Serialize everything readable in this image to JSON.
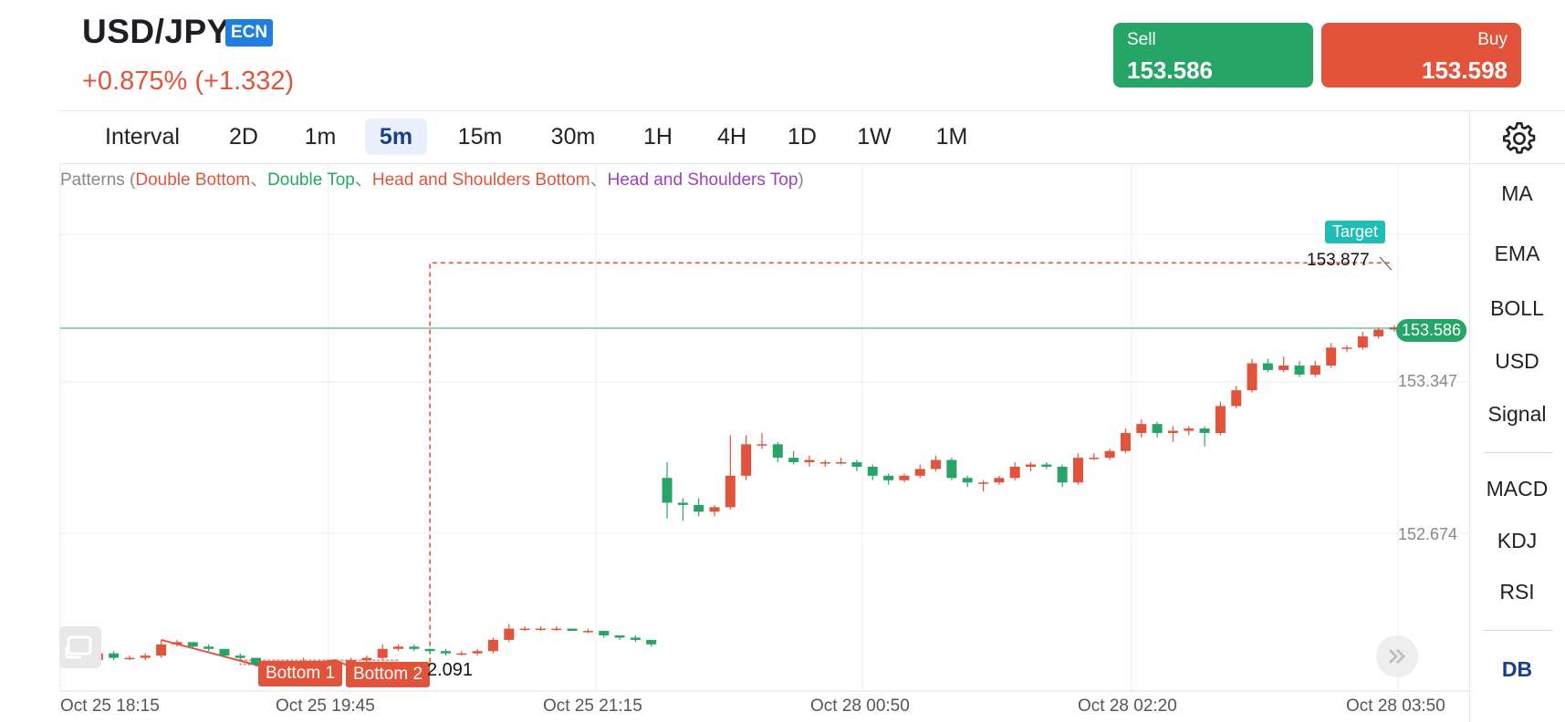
{
  "header": {
    "symbol": "USD/JPY",
    "badge": "ECN",
    "change": "+0.875% (+1.332)"
  },
  "trade": {
    "sell_label": "Sell",
    "sell_price": "153.586",
    "buy_label": "Buy",
    "buy_price": "153.598"
  },
  "intervals": {
    "label": "Interval",
    "items": [
      "2D",
      "1m",
      "5m",
      "15m",
      "30m",
      "1H",
      "4H",
      "1D",
      "1W",
      "1M"
    ],
    "active": "5m"
  },
  "settings_icon": "gear-icon",
  "right_panel": {
    "overlays": [
      "MA",
      "EMA",
      "BOLL",
      "USD",
      "Signal"
    ],
    "oscillators": [
      "MACD",
      "KDJ",
      "RSI"
    ],
    "brand": "DB"
  },
  "patterns": {
    "prefix": "Patterns (",
    "double_bottom": "Double Bottom",
    "sep1": "、",
    "double_top": "Double Top",
    "sep2": "、",
    "hs_bottom": "Head and Shoulders Bottom",
    "sep3": "、",
    "hs_top": "Head and Shoulders Top",
    "suffix": ")"
  },
  "colors": {
    "up": "#e1533b",
    "down": "#27a567",
    "accent": "#1a3f8f",
    "target": "#1fbdb5"
  },
  "chart_data": {
    "type": "candlestick",
    "x_labels": [
      "Oct 25 18:15",
      "Oct 25 19:45",
      "Oct 25 21:15",
      "Oct 28 00:50",
      "Oct 28 02:20",
      "Oct 28 03:50"
    ],
    "y_ticks": [
      "153.347",
      "152.674"
    ],
    "current_price": "153.586",
    "target_label": "Target",
    "target_price": "153.877",
    "pattern_labels": [
      "Bottom 1",
      "Bottom 2"
    ],
    "pattern_low": "2.091",
    "candles": [
      {
        "o": 152.1,
        "h": 152.14,
        "l": 152.08,
        "c": 152.11
      },
      {
        "o": 152.11,
        "h": 152.16,
        "l": 152.09,
        "c": 152.14
      },
      {
        "o": 152.14,
        "h": 152.15,
        "l": 152.11,
        "c": 152.12
      },
      {
        "o": 152.12,
        "h": 152.13,
        "l": 152.11,
        "c": 152.12
      },
      {
        "o": 152.12,
        "h": 152.14,
        "l": 152.11,
        "c": 152.13
      },
      {
        "o": 152.13,
        "h": 152.2,
        "l": 152.12,
        "c": 152.18
      },
      {
        "o": 152.18,
        "h": 152.2,
        "l": 152.17,
        "c": 152.19
      },
      {
        "o": 152.19,
        "h": 152.19,
        "l": 152.16,
        "c": 152.17
      },
      {
        "o": 152.17,
        "h": 152.18,
        "l": 152.15,
        "c": 152.16
      },
      {
        "o": 152.16,
        "h": 152.16,
        "l": 152.12,
        "c": 152.13
      },
      {
        "o": 152.13,
        "h": 152.14,
        "l": 152.11,
        "c": 152.12
      },
      {
        "o": 152.12,
        "h": 152.12,
        "l": 152.08,
        "c": 152.09
      },
      {
        "o": 152.09,
        "h": 152.1,
        "l": 152.07,
        "c": 152.08
      },
      {
        "o": 152.08,
        "h": 152.11,
        "l": 152.07,
        "c": 152.1
      },
      {
        "o": 152.1,
        "h": 152.12,
        "l": 152.09,
        "c": 152.1
      },
      {
        "o": 152.1,
        "h": 152.11,
        "l": 152.08,
        "c": 152.09
      },
      {
        "o": 152.09,
        "h": 152.1,
        "l": 152.07,
        "c": 152.08
      },
      {
        "o": 152.08,
        "h": 152.12,
        "l": 152.07,
        "c": 152.11
      },
      {
        "o": 152.11,
        "h": 152.13,
        "l": 152.1,
        "c": 152.12
      },
      {
        "o": 152.12,
        "h": 152.18,
        "l": 152.11,
        "c": 152.16
      },
      {
        "o": 152.16,
        "h": 152.18,
        "l": 152.15,
        "c": 152.17
      },
      {
        "o": 152.17,
        "h": 152.18,
        "l": 152.15,
        "c": 152.16
      },
      {
        "o": 152.16,
        "h": 152.16,
        "l": 152.14,
        "c": 152.15
      },
      {
        "o": 152.15,
        "h": 152.16,
        "l": 152.13,
        "c": 152.14
      },
      {
        "o": 152.14,
        "h": 152.15,
        "l": 152.13,
        "c": 152.14
      },
      {
        "o": 152.14,
        "h": 152.16,
        "l": 152.13,
        "c": 152.15
      },
      {
        "o": 152.15,
        "h": 152.21,
        "l": 152.14,
        "c": 152.2
      },
      {
        "o": 152.2,
        "h": 152.27,
        "l": 152.19,
        "c": 152.25
      },
      {
        "o": 152.25,
        "h": 152.26,
        "l": 152.24,
        "c": 152.25
      },
      {
        "o": 152.25,
        "h": 152.26,
        "l": 152.24,
        "c": 152.25
      },
      {
        "o": 152.25,
        "h": 152.26,
        "l": 152.24,
        "c": 152.25
      },
      {
        "o": 152.25,
        "h": 152.25,
        "l": 152.24,
        "c": 152.24
      },
      {
        "o": 152.24,
        "h": 152.25,
        "l": 152.23,
        "c": 152.24
      },
      {
        "o": 152.24,
        "h": 152.24,
        "l": 152.21,
        "c": 152.22
      },
      {
        "o": 152.22,
        "h": 152.22,
        "l": 152.2,
        "c": 152.21
      },
      {
        "o": 152.21,
        "h": 152.22,
        "l": 152.19,
        "c": 152.2
      },
      {
        "o": 152.2,
        "h": 152.2,
        "l": 152.17,
        "c": 152.18
      },
      {
        "o": 152.92,
        "h": 152.99,
        "l": 152.74,
        "c": 152.81
      },
      {
        "o": 152.81,
        "h": 152.83,
        "l": 152.73,
        "c": 152.8
      },
      {
        "o": 152.8,
        "h": 152.83,
        "l": 152.75,
        "c": 152.77
      },
      {
        "o": 152.77,
        "h": 152.8,
        "l": 152.75,
        "c": 152.79
      },
      {
        "o": 152.79,
        "h": 153.11,
        "l": 152.78,
        "c": 152.93
      },
      {
        "o": 152.93,
        "h": 153.11,
        "l": 152.91,
        "c": 153.07
      },
      {
        "o": 153.07,
        "h": 153.12,
        "l": 153.05,
        "c": 153.07
      },
      {
        "o": 153.07,
        "h": 153.08,
        "l": 152.99,
        "c": 153.01
      },
      {
        "o": 153.01,
        "h": 153.04,
        "l": 152.98,
        "c": 152.99
      },
      {
        "o": 152.99,
        "h": 153.02,
        "l": 152.97,
        "c": 153.0
      },
      {
        "o": 152.99,
        "h": 153.0,
        "l": 152.97,
        "c": 152.99
      },
      {
        "o": 152.99,
        "h": 153.01,
        "l": 152.98,
        "c": 152.99
      },
      {
        "o": 152.99,
        "h": 153.0,
        "l": 152.95,
        "c": 152.97
      },
      {
        "o": 152.97,
        "h": 152.98,
        "l": 152.91,
        "c": 152.93
      },
      {
        "o": 152.93,
        "h": 152.94,
        "l": 152.89,
        "c": 152.91
      },
      {
        "o": 152.91,
        "h": 152.94,
        "l": 152.9,
        "c": 152.93
      },
      {
        "o": 152.93,
        "h": 152.98,
        "l": 152.92,
        "c": 152.96
      },
      {
        "o": 152.96,
        "h": 153.02,
        "l": 152.95,
        "c": 153.0
      },
      {
        "o": 153.0,
        "h": 153.01,
        "l": 152.91,
        "c": 152.92
      },
      {
        "o": 152.92,
        "h": 152.93,
        "l": 152.88,
        "c": 152.9
      },
      {
        "o": 152.9,
        "h": 152.91,
        "l": 152.86,
        "c": 152.9
      },
      {
        "o": 152.9,
        "h": 152.93,
        "l": 152.89,
        "c": 152.92
      },
      {
        "o": 152.92,
        "h": 152.99,
        "l": 152.91,
        "c": 152.97
      },
      {
        "o": 152.97,
        "h": 152.99,
        "l": 152.95,
        "c": 152.98
      },
      {
        "o": 152.98,
        "h": 152.99,
        "l": 152.96,
        "c": 152.97
      },
      {
        "o": 152.97,
        "h": 152.98,
        "l": 152.88,
        "c": 152.9
      },
      {
        "o": 152.9,
        "h": 153.03,
        "l": 152.89,
        "c": 153.01
      },
      {
        "o": 153.01,
        "h": 153.03,
        "l": 153.0,
        "c": 153.01
      },
      {
        "o": 153.01,
        "h": 153.05,
        "l": 153.0,
        "c": 153.04
      },
      {
        "o": 153.04,
        "h": 153.14,
        "l": 153.03,
        "c": 153.12
      },
      {
        "o": 153.12,
        "h": 153.18,
        "l": 153.1,
        "c": 153.16
      },
      {
        "o": 153.16,
        "h": 153.17,
        "l": 153.1,
        "c": 153.12
      },
      {
        "o": 153.12,
        "h": 153.15,
        "l": 153.08,
        "c": 153.13
      },
      {
        "o": 153.13,
        "h": 153.15,
        "l": 153.11,
        "c": 153.14
      },
      {
        "o": 153.14,
        "h": 153.15,
        "l": 153.06,
        "c": 153.12
      },
      {
        "o": 153.12,
        "h": 153.26,
        "l": 153.11,
        "c": 153.24
      },
      {
        "o": 153.24,
        "h": 153.33,
        "l": 153.23,
        "c": 153.31
      },
      {
        "o": 153.31,
        "h": 153.45,
        "l": 153.3,
        "c": 153.43
      },
      {
        "o": 153.43,
        "h": 153.45,
        "l": 153.39,
        "c": 153.4
      },
      {
        "o": 153.4,
        "h": 153.46,
        "l": 153.39,
        "c": 153.42
      },
      {
        "o": 153.42,
        "h": 153.44,
        "l": 153.37,
        "c": 153.38
      },
      {
        "o": 153.38,
        "h": 153.44,
        "l": 153.37,
        "c": 153.42
      },
      {
        "o": 153.42,
        "h": 153.52,
        "l": 153.41,
        "c": 153.5
      },
      {
        "o": 153.5,
        "h": 153.51,
        "l": 153.48,
        "c": 153.5
      },
      {
        "o": 153.5,
        "h": 153.57,
        "l": 153.49,
        "c": 153.55
      },
      {
        "o": 153.55,
        "h": 153.59,
        "l": 153.54,
        "c": 153.58
      },
      {
        "o": 153.58,
        "h": 153.6,
        "l": 153.57,
        "c": 153.59
      }
    ]
  }
}
